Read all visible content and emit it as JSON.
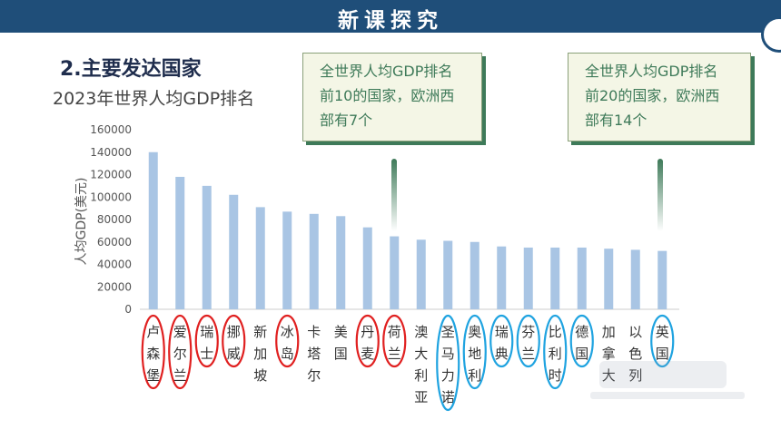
{
  "header": {
    "title": "新课探究"
  },
  "slide": {
    "heading": "2.主要发达国家",
    "subtitle": "2023年世界人均GDP排名"
  },
  "callouts": {
    "left": [
      "全世界人均GDP排名",
      "前10的国家，欧洲西",
      "部有7个"
    ],
    "right": [
      "全世界人均GDP排名",
      "前20的国家，欧洲西",
      "部有14个"
    ]
  },
  "colors": {
    "bar": "#a9c5e4",
    "red_circle": "#e02020",
    "blue_circle": "#1fa3e0",
    "header_bg": "#1f4e79",
    "callout_text": "#3e7a59"
  },
  "chart_data": {
    "type": "bar",
    "title": "2023年世界人均GDP排名",
    "ylabel": "人均GDP(美元)",
    "xlabel": "",
    "ylim": [
      0,
      160000
    ],
    "yticks": [
      0,
      20000,
      40000,
      60000,
      80000,
      100000,
      120000,
      140000,
      160000
    ],
    "categories": [
      "卢森堡",
      "爱尔兰",
      "瑞士",
      "挪威",
      "新加坡",
      "冰岛",
      "卡塔尔",
      "美国",
      "丹麦",
      "荷兰",
      "澳大利亚",
      "圣马力诺",
      "奥地利",
      "瑞典",
      "芬兰",
      "比利时",
      "德国",
      "加拿大",
      "以色列",
      "英国"
    ],
    "values": [
      140000,
      118000,
      110000,
      102000,
      91000,
      87000,
      85000,
      83000,
      73000,
      65000,
      62000,
      61000,
      60000,
      56000,
      55000,
      55000,
      55000,
      54000,
      53000,
      52000
    ],
    "circled_red": [
      "卢森堡",
      "爱尔兰",
      "瑞士",
      "挪威",
      "冰岛",
      "丹麦",
      "荷兰"
    ],
    "circled_blue": [
      "圣马力诺",
      "奥地利",
      "瑞典",
      "芬兰",
      "比利时",
      "德国",
      "英国"
    ],
    "grid": false,
    "legend": "none"
  }
}
